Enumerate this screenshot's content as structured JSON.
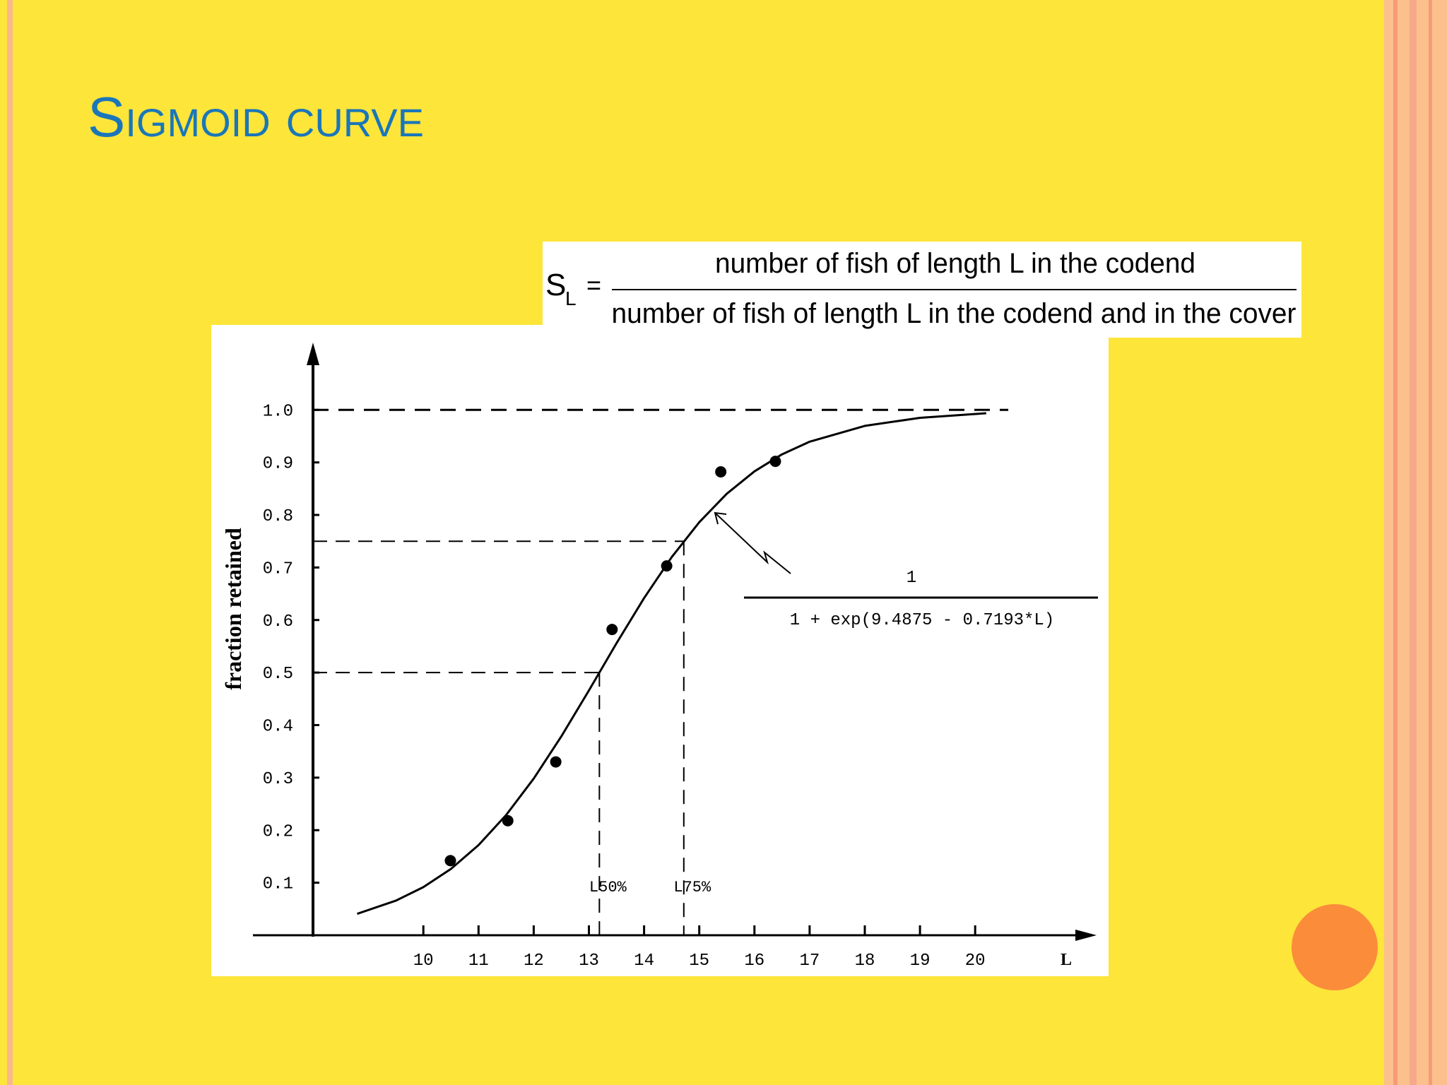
{
  "slide_title": "Sigmoid curve",
  "formula": {
    "lhs": "S",
    "lhs_sub": "L",
    "equals": "=",
    "numerator": "number of fish of length L in the codend",
    "denominator": "number of fish of length L in the codend and in the cover"
  },
  "chart_data": {
    "type": "scatter",
    "y_label": "fraction retained",
    "x_label": "L",
    "xlim": [
      8,
      22.2
    ],
    "ylim": [
      0,
      1.12
    ],
    "xticks": [
      10,
      11,
      12,
      13,
      14,
      15,
      16,
      17,
      18,
      19,
      20
    ],
    "yticks": [
      0.1,
      0.2,
      0.3,
      0.4,
      0.5,
      0.6,
      0.7,
      0.8,
      0.9,
      {
        "value": 1,
        "label": "1.0"
      }
    ],
    "series": [
      {
        "type": "scatter",
        "color": "#000000",
        "x": [
          10.49,
          11.53,
          12.4,
          13.42,
          14.41,
          15.39,
          16.38
        ],
        "values": [
          0.142,
          0.218,
          0.33,
          0.582,
          0.703,
          0.882,
          0.902
        ]
      },
      {
        "type": "line",
        "color": "#000000",
        "x": [
          8.8,
          9.5,
          10,
          10.5,
          11,
          11.5,
          12,
          12.5,
          13,
          13.5,
          14,
          14.5,
          15,
          15.5,
          16,
          16.5,
          17,
          18,
          19,
          20.2
        ],
        "values": [
          0.0408,
          0.0657,
          0.0916,
          0.1262,
          0.1715,
          0.2287,
          0.2982,
          0.3784,
          0.4659,
          0.5556,
          0.6417,
          0.7196,
          0.7862,
          0.8405,
          0.883,
          0.9154,
          0.9394,
          0.9696,
          0.9849,
          0.9936
        ]
      }
    ],
    "reference_lines": [
      {
        "x": 13.19,
        "y": 0.5,
        "label": "L50%"
      },
      {
        "x": 14.72,
        "y": 0.75,
        "label": "L75%"
      }
    ],
    "asymptote": {
      "y": 1,
      "x_end": 20.6
    },
    "annotation": {
      "numerator": "1",
      "denominator": "1 + exp(9.4875 - 0.7193*L)"
    }
  }
}
